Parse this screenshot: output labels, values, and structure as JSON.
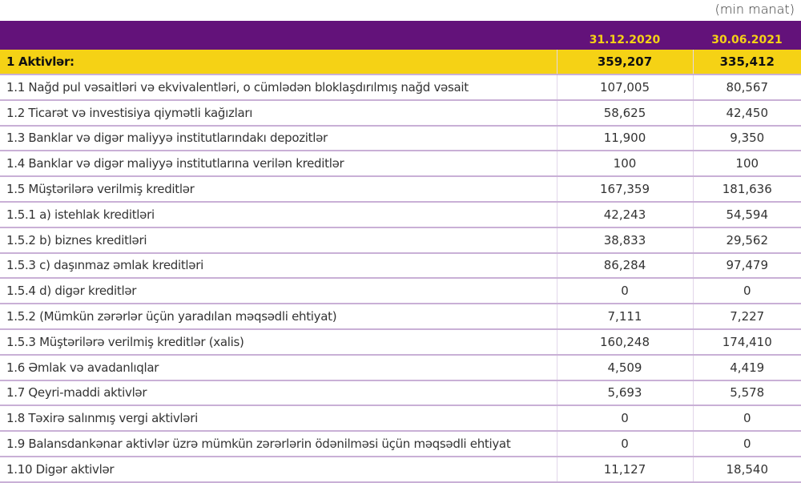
{
  "unit_label": "(min manat)",
  "columns": [
    "31.12.2020",
    "30.06.2021"
  ],
  "total": {
    "label": "1 Aktivlər:",
    "values": [
      "359,207",
      "335,412"
    ]
  },
  "rows": [
    {
      "label": "1.1 Nağd pul vəsaitləri və ekvivalentləri, o cümlədən bloklaşdırılmış nağd vəsait",
      "values": [
        "107,005",
        "80,567"
      ]
    },
    {
      "label": "1.2 Ticarət və investisiya qiymətli kağızları",
      "values": [
        "58,625",
        "42,450"
      ]
    },
    {
      "label": "1.3 Banklar və digər maliyyə institutlarındakı depozitlər",
      "values": [
        "11,900",
        "9,350"
      ]
    },
    {
      "label": "1.4 Banklar və digər maliyyə institutlarına verilən kreditlər",
      "values": [
        "100",
        "100"
      ]
    },
    {
      "label": "1.5 Müştərilərə verilmiş kreditlər",
      "values": [
        "167,359",
        "181,636"
      ]
    },
    {
      "label": "1.5.1 a) istehlak kreditləri",
      "values": [
        "42,243",
        "54,594"
      ]
    },
    {
      "label": "1.5.2 b) biznes kreditləri",
      "values": [
        "38,833",
        "29,562"
      ]
    },
    {
      "label": "1.5.3 c) daşınmaz əmlak kreditləri",
      "values": [
        "86,284",
        "97,479"
      ]
    },
    {
      "label": "1.5.4 d) digər kreditlər",
      "values": [
        "0",
        "0"
      ]
    },
    {
      "label": "1.5.2 (Mümkün zərərlər üçün yaradılan məqsədli ehtiyat)",
      "values": [
        "7,111",
        "7,227"
      ]
    },
    {
      "label": "1.5.3 Müştərilərə verilmiş kreditlər (xalis)",
      "values": [
        "160,248",
        "174,410"
      ]
    },
    {
      "label": "1.6 Əmlak və avadanlıqlar",
      "values": [
        "4,509",
        "4,419"
      ]
    },
    {
      "label": "1.7 Qeyri-maddi aktivlər",
      "values": [
        "5,693",
        "5,578"
      ]
    },
    {
      "label": "1.8 Təxirə salınmış vergi aktivləri",
      "values": [
        "0",
        "0"
      ]
    },
    {
      "label": "1.9 Balansdankənar aktivlər üzrə mümkün zərərlərin ödənilməsi üçün məqsədli ehtiyat",
      "values": [
        "0",
        "0"
      ]
    },
    {
      "label": "1.10 Digər aktivlər",
      "values": [
        "11,127",
        "18,540"
      ]
    }
  ],
  "colors": {
    "header_bg": "#63127a",
    "header_text": "#f5d215",
    "total_bg": "#f5d215",
    "row_border": "#c9b0d6"
  }
}
